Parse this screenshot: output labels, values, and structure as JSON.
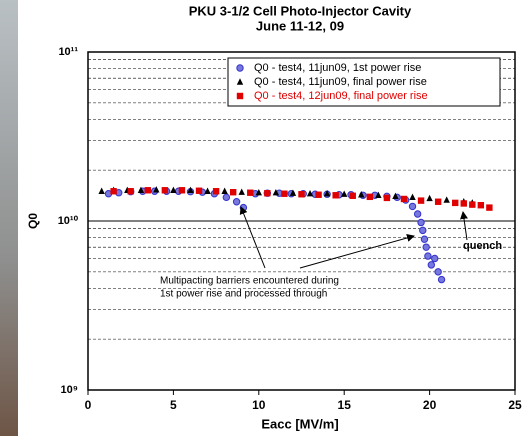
{
  "chart_data": {
    "type": "scatter",
    "title": "PKU 3-1/2 Cell Photo-Injector Cavity",
    "subtitle": "June 11-12, 09",
    "xlabel": "Eacc [MV/m]",
    "ylabel": "Q0",
    "log_y": true,
    "grid": true,
    "legend": "upper right",
    "xlim": [
      0,
      25
    ],
    "xticks": [
      0,
      5,
      10,
      15,
      20,
      25
    ],
    "ylim": [
      1000000000.0,
      100000000000.0
    ],
    "yticks": [
      {
        "value": 1000000000.0,
        "label": "10⁹"
      },
      {
        "value": 10000000000.0,
        "label": "10¹⁰"
      },
      {
        "value": 100000000000.0,
        "label": "10¹¹"
      }
    ],
    "yminorticks": [
      2000000000.0,
      3000000000.0,
      4000000000.0,
      5000000000.0,
      6000000000.0,
      7000000000.0,
      8000000000.0,
      9000000000.0,
      20000000000.0,
      30000000000.0,
      40000000000.0,
      50000000000.0,
      60000000000.0,
      70000000000.0,
      80000000000.0,
      90000000000.0
    ],
    "annotations": [
      "Multipacting barriers encountered during",
      "1st power rise and processed through",
      "quench"
    ],
    "series": [
      {
        "name": "Q0 - test4, 11jun09, 1st power rise",
        "color": "#3333cc",
        "marker": "circle",
        "x": [
          1.2,
          1.8,
          2.5,
          3.2,
          3.9,
          4.6,
          5.3,
          6,
          6.7,
          7.4,
          8.1,
          8.7,
          9.1,
          9.8,
          10.5,
          11.2,
          11.9,
          12.6,
          13.3,
          14,
          14.7,
          15.4,
          16.1,
          16.8,
          17.5,
          18.1,
          18.6,
          19,
          19.3,
          19.5,
          19.6,
          19.7,
          19.8,
          19.9,
          20.1,
          20.3,
          20.5,
          20.7
        ],
        "values": [
          14500000000.0,
          14700000000.0,
          14900000000.0,
          15000000000.0,
          15000000000.0,
          15000000000.0,
          15000000000.0,
          14900000000.0,
          14800000000.0,
          14500000000.0,
          13800000000.0,
          13000000000.0,
          12000000000.0,
          14500000000.0,
          14600000000.0,
          14600000000.0,
          14500000000.0,
          14500000000.0,
          14400000000.0,
          14400000000.0,
          14300000000.0,
          14300000000.0,
          14200000000.0,
          14200000000.0,
          14000000000.0,
          13800000000.0,
          13300000000.0,
          12200000000.0,
          11000000000.0,
          9800000000.0,
          8800000000.0,
          7800000000.0,
          7000000000.0,
          6200000000.0,
          5500000000.0,
          6000000000.0,
          5000000000.0,
          4500000000.0
        ]
      },
      {
        "name": "Q0 - test4, 11jun09, final power rise",
        "color": "#000000",
        "marker": "triangle",
        "x": [
          0.8,
          1.5,
          2.3,
          3.1,
          4,
          5,
          6,
          7,
          8,
          9,
          10,
          11,
          12,
          13,
          14,
          15,
          16,
          17,
          18,
          19,
          20,
          21,
          22,
          22.5
        ],
        "values": [
          15000000000.0,
          15200000000.0,
          15200000000.0,
          15200000000.0,
          15300000000.0,
          15200000000.0,
          15200000000.0,
          15000000000.0,
          15000000000.0,
          14800000000.0,
          14700000000.0,
          14700000000.0,
          14600000000.0,
          14500000000.0,
          14500000000.0,
          14400000000.0,
          14300000000.0,
          14200000000.0,
          14000000000.0,
          13800000000.0,
          13600000000.0,
          13300000000.0,
          13000000000.0,
          12800000000.0
        ]
      },
      {
        "name": "Q0 - test4, 12jun09, final power rise",
        "color": "#e00000",
        "marker": "square",
        "x": [
          1.5,
          2.5,
          3.5,
          4.5,
          5.5,
          6.5,
          7.5,
          8.5,
          9.5,
          10.5,
          11.5,
          12.5,
          13.5,
          14.5,
          15.5,
          16.5,
          17.5,
          18.5,
          19.5,
          20.5,
          21.5,
          22,
          22.5,
          23,
          23.5
        ],
        "values": [
          15000000000.0,
          15000000000.0,
          15200000000.0,
          15200000000.0,
          15200000000.0,
          15100000000.0,
          15000000000.0,
          14800000000.0,
          14700000000.0,
          14600000000.0,
          14500000000.0,
          14400000000.0,
          14300000000.0,
          14200000000.0,
          14100000000.0,
          13900000000.0,
          13700000000.0,
          13500000000.0,
          13200000000.0,
          13000000000.0,
          12800000000.0,
          12700000000.0,
          12500000000.0,
          12400000000.0,
          12000000000.0
        ]
      }
    ]
  }
}
